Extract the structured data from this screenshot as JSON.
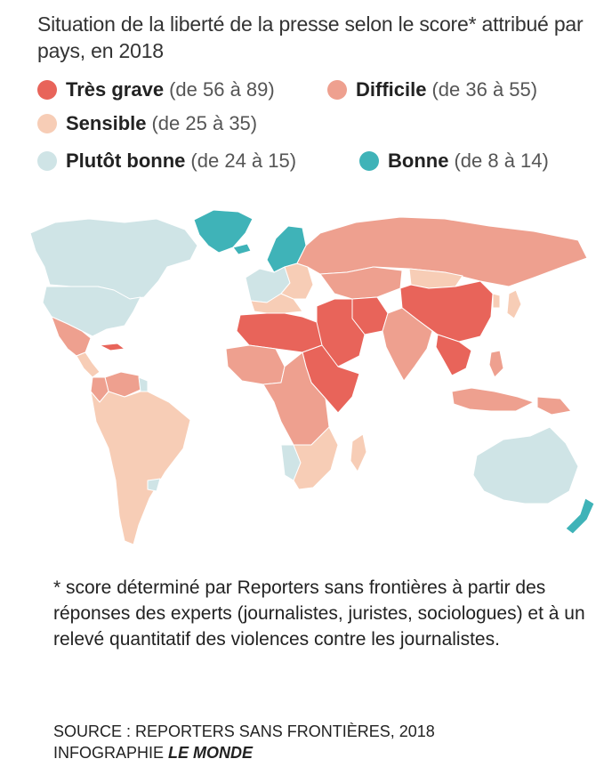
{
  "title": "Situation de la liberté de la presse selon le score* attribué par pays, en 2018",
  "legend": [
    {
      "name": "Très grave",
      "range": "(de 56 à 89)",
      "color": "#e8645a"
    },
    {
      "name": "Difficile",
      "range": "(de 36 à 55)",
      "color": "#eea08f"
    },
    {
      "name": "Sensible",
      "range": "(de 25 à 35)",
      "color": "#f7cdb6"
    },
    {
      "name": "Plutôt bonne",
      "range": "(de 24 à 15)",
      "color": "#cfe4e6"
    },
    {
      "name": "Bonne",
      "range": "(de 8 à 14)",
      "color": "#3fb3b8"
    }
  ],
  "map": {
    "border_color": "#ffffff",
    "regions": [
      {
        "name": "greenland",
        "category": "Bonne"
      },
      {
        "name": "canada",
        "category": "Plutôt bonne"
      },
      {
        "name": "usa",
        "category": "Plutôt bonne"
      },
      {
        "name": "mexico",
        "category": "Difficile"
      },
      {
        "name": "central-america",
        "category": "Sensible"
      },
      {
        "name": "cuba",
        "category": "Très grave"
      },
      {
        "name": "south-america",
        "category": "Sensible"
      },
      {
        "name": "venezuela",
        "category": "Difficile"
      },
      {
        "name": "colombia",
        "category": "Difficile"
      },
      {
        "name": "guyana",
        "category": "Plutôt bonne"
      },
      {
        "name": "uruguay",
        "category": "Plutôt bonne"
      },
      {
        "name": "iceland",
        "category": "Bonne"
      },
      {
        "name": "scandinavia",
        "category": "Bonne"
      },
      {
        "name": "western-europe",
        "category": "Plutôt bonne"
      },
      {
        "name": "southern-europe",
        "category": "Sensible"
      },
      {
        "name": "eastern-europe",
        "category": "Sensible"
      },
      {
        "name": "russia",
        "category": "Difficile"
      },
      {
        "name": "central-asia",
        "category": "Difficile"
      },
      {
        "name": "mongolia",
        "category": "Sensible"
      },
      {
        "name": "china",
        "category": "Très grave"
      },
      {
        "name": "middle-east",
        "category": "Très grave"
      },
      {
        "name": "iran",
        "category": "Très grave"
      },
      {
        "name": "india",
        "category": "Difficile"
      },
      {
        "name": "southeast-asia",
        "category": "Très grave"
      },
      {
        "name": "japan",
        "category": "Sensible"
      },
      {
        "name": "korea",
        "category": "Sensible"
      },
      {
        "name": "indonesia",
        "category": "Difficile"
      },
      {
        "name": "philippines",
        "category": "Difficile"
      },
      {
        "name": "north-africa",
        "category": "Très grave"
      },
      {
        "name": "west-africa",
        "category": "Difficile"
      },
      {
        "name": "east-africa",
        "category": "Très grave"
      },
      {
        "name": "central-africa",
        "category": "Difficile"
      },
      {
        "name": "southern-africa",
        "category": "Sensible"
      },
      {
        "name": "namibia",
        "category": "Plutôt bonne"
      },
      {
        "name": "madagascar",
        "category": "Sensible"
      },
      {
        "name": "australia",
        "category": "Plutôt bonne"
      },
      {
        "name": "new-guinea",
        "category": "Difficile"
      },
      {
        "name": "new-zealand",
        "category": "Bonne"
      }
    ]
  },
  "footnote": "* score déterminé par Reporters sans frontières à partir des réponses des experts (journalistes, juristes, sociologues) et à un relevé quantitatif des violences contre les journalistes.",
  "source": {
    "line1": "SOURCE : REPORTERS SANS FRONTIÈRES, 2018",
    "prefix": "INFOGRAPHIE",
    "brand": "LE MONDE"
  }
}
